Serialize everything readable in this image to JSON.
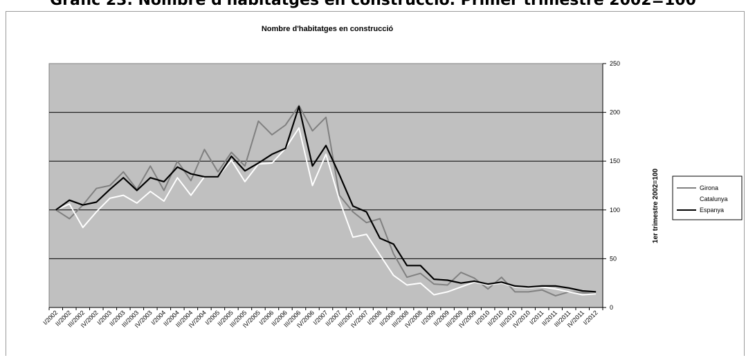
{
  "page_title": "Gràfic 23. Nombre d'habitatges en construcció. Primer trimestre 2002=100",
  "chart_data": {
    "type": "line",
    "title": "Nombre d'habitatges en construcció",
    "ylabel": "1er trimestre 2002=100",
    "xlabel": "",
    "ylim": [
      0,
      250
    ],
    "yticks": [
      0,
      50,
      100,
      150,
      200,
      250
    ],
    "y_axis_side": "right",
    "grid": true,
    "legend_position": "right",
    "plot_background": "#c0c0c0",
    "categories": [
      "I/2002",
      "II/2002",
      "III/2002",
      "IV/2002",
      "I/2003",
      "II/2003",
      "III/2003",
      "IV/2003",
      "I/2004",
      "II/2004",
      "III/2004",
      "IV/2004",
      "I/2005",
      "II/2005",
      "III/2005",
      "IV/2005",
      "I/2006",
      "II/2006",
      "III/2006",
      "IV/2006",
      "I/2007",
      "II/2007",
      "III/2007",
      "IV/2007",
      "I/2008",
      "II/2008",
      "III/2008",
      "IV/2008",
      "I/2009",
      "II/2009",
      "III/2009",
      "IV/2009",
      "I/2010",
      "II/2010",
      "III/2010",
      "IV/2010",
      "I/2011",
      "II/2011",
      "III/2011",
      "IV/2011",
      "I/2012"
    ],
    "series": [
      {
        "name": "Girona",
        "color": "#808080",
        "values": [
          100,
          91,
          105,
          122,
          125,
          139,
          121,
          145,
          120,
          150,
          130,
          162,
          139,
          159,
          145,
          191,
          177,
          187,
          207,
          181,
          195,
          115,
          98,
          87,
          91,
          55,
          31,
          35,
          24,
          23,
          36,
          30,
          19,
          31,
          16,
          16,
          18,
          12,
          16,
          15,
          14
        ]
      },
      {
        "name": "Catalunya",
        "color": "#ffffff",
        "values": [
          100,
          106,
          82,
          98,
          112,
          115,
          107,
          119,
          109,
          133,
          115,
          134,
          134,
          151,
          129,
          147,
          148,
          163,
          184,
          125,
          157,
          110,
          72,
          75,
          54,
          33,
          23,
          25,
          13,
          16,
          21,
          26,
          23,
          25,
          21,
          20,
          21,
          19,
          16,
          13,
          14
        ]
      },
      {
        "name": "Espanya",
        "color": "#000000",
        "values": [
          100,
          110,
          105,
          108,
          121,
          133,
          120,
          133,
          129,
          144,
          137,
          134,
          134,
          155,
          140,
          148,
          157,
          163,
          206,
          145,
          166,
          136,
          104,
          98,
          71,
          65,
          43,
          43,
          29,
          28,
          25,
          27,
          24,
          26,
          22,
          21,
          22,
          22,
          20,
          17,
          16
        ]
      }
    ]
  }
}
